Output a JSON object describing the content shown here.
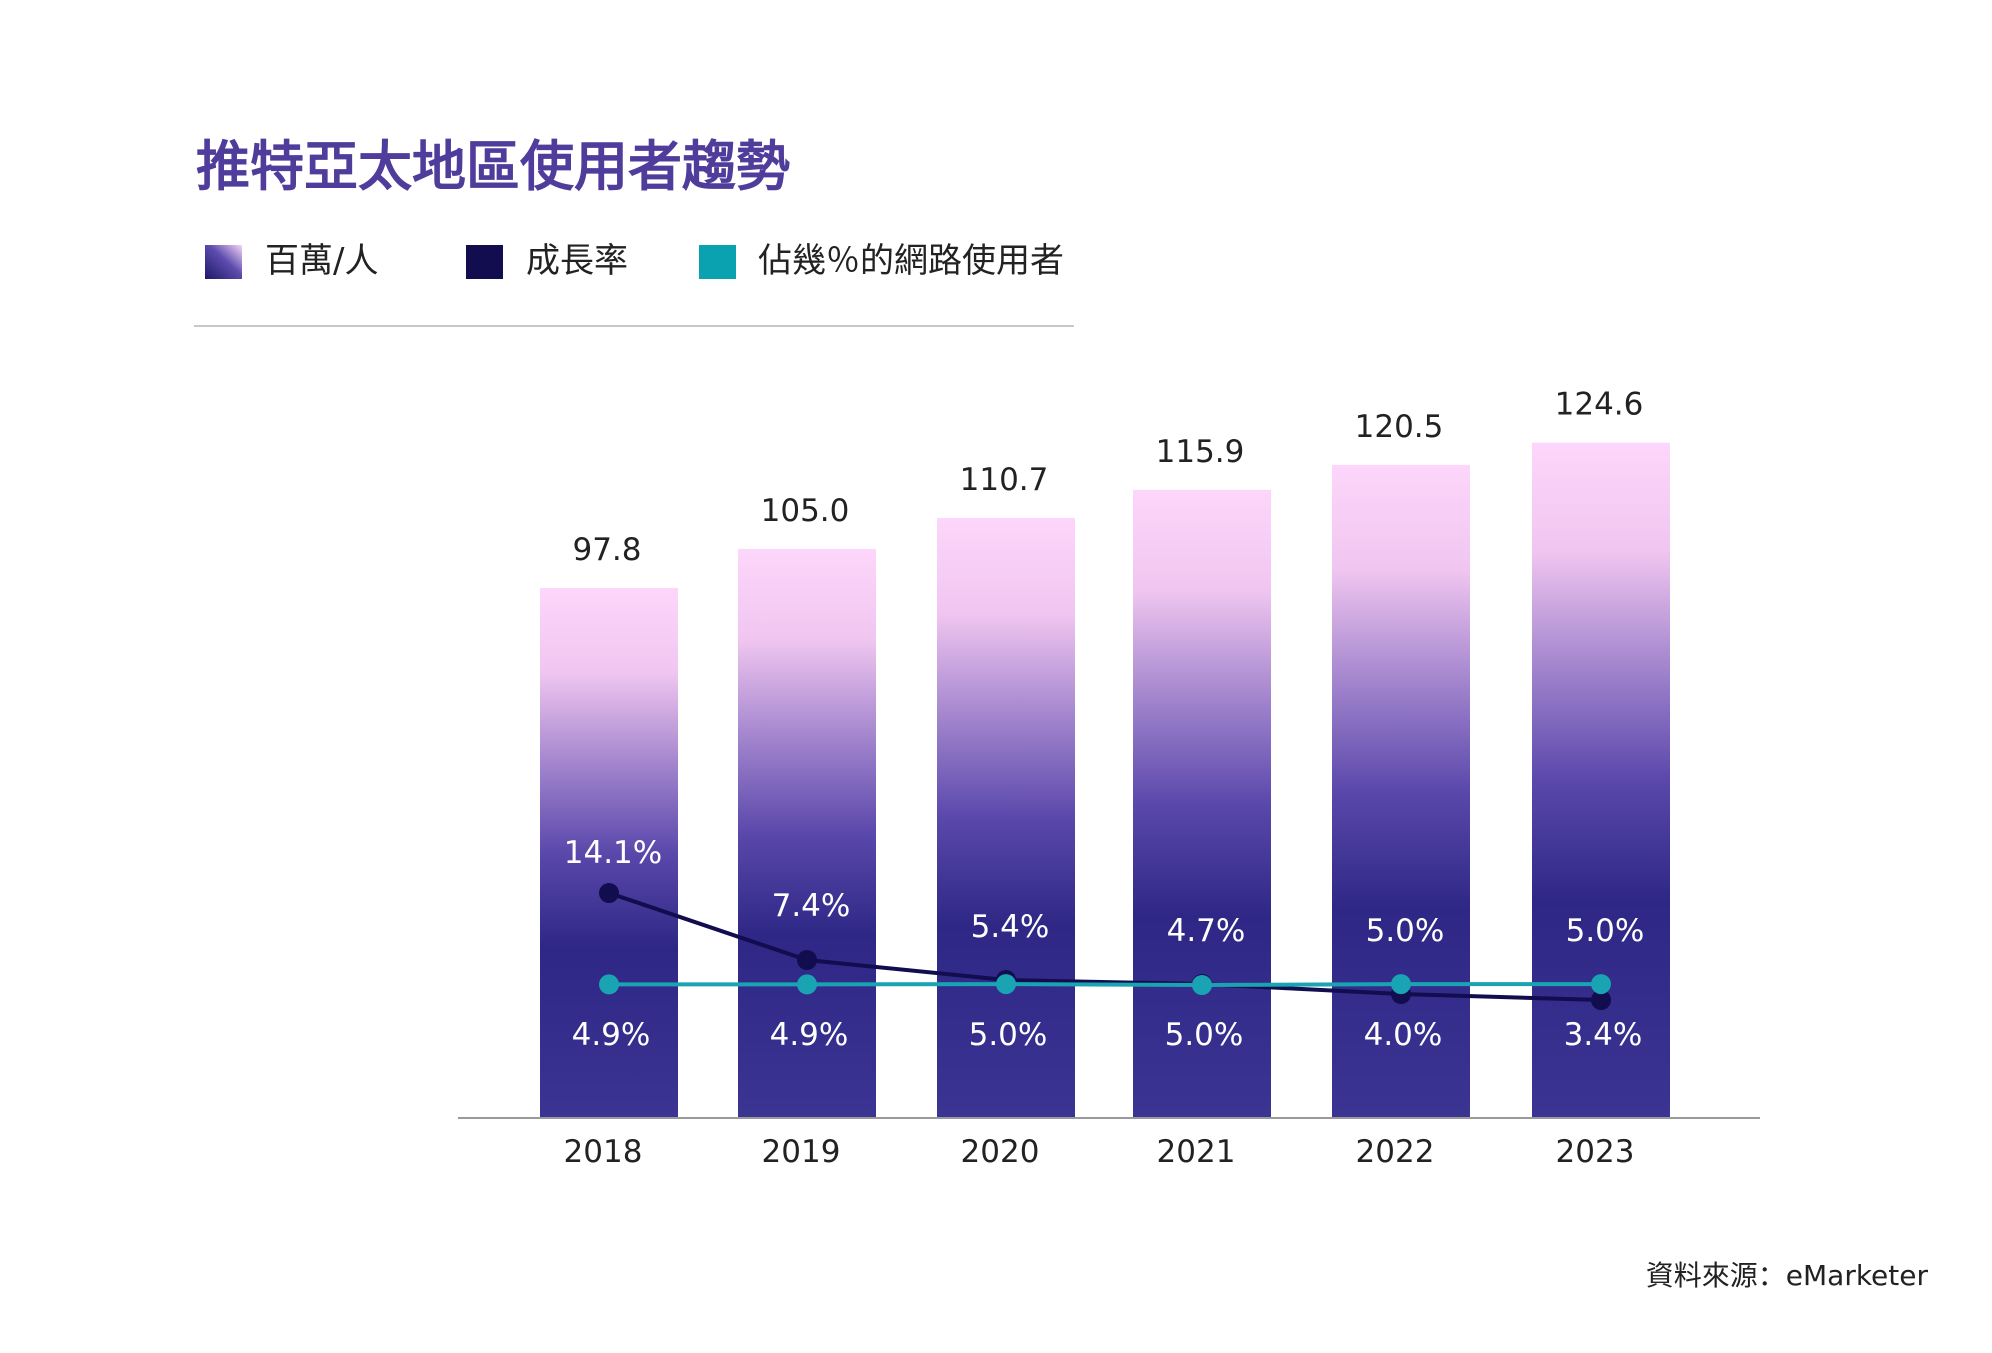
{
  "chart_data": {
    "type": "bar",
    "title": "推特亞太地區使用者趨勢",
    "categories": [
      "2018",
      "2019",
      "2020",
      "2021",
      "2022",
      "2023"
    ],
    "series": [
      {
        "name": "百萬/人",
        "type": "bar",
        "values": [
          97.8,
          105.0,
          110.7,
          115.9,
          120.5,
          124.6
        ],
        "labels": [
          "97.8",
          "105.0",
          "110.7",
          "115.9",
          "120.5",
          "124.6"
        ]
      },
      {
        "name": "成長率",
        "type": "line",
        "values": [
          14.1,
          7.4,
          5.4,
          5.0,
          4.0,
          3.4
        ],
        "labels": [
          "14.1%",
          "7.4%",
          "5.4%",
          "5.0%",
          "4.0%",
          "3.4%"
        ]
      },
      {
        "name": "佔幾％的網路使用者",
        "type": "line",
        "values": [
          4.9,
          4.9,
          5.0,
          4.7,
          5.0,
          5.0
        ],
        "labels": [
          "4.9%",
          "4.9%",
          "5.0%",
          "4.7%",
          "5.0%",
          "5.0%"
        ]
      }
    ],
    "legend_position": "top-left",
    "grid": false
  },
  "source": "資料來源：eMarketer",
  "colors": {
    "title": "#4f3c9b",
    "bar_top": "#fdd6fb",
    "bar_mid": "#7d65b9",
    "bar_bottom": "#2e2785",
    "growth_line": "#110d4f",
    "share_line": "#1aa3b3",
    "share_legend": "#0aa2b1",
    "text": "#222222",
    "axis": "#9a9a9a"
  }
}
